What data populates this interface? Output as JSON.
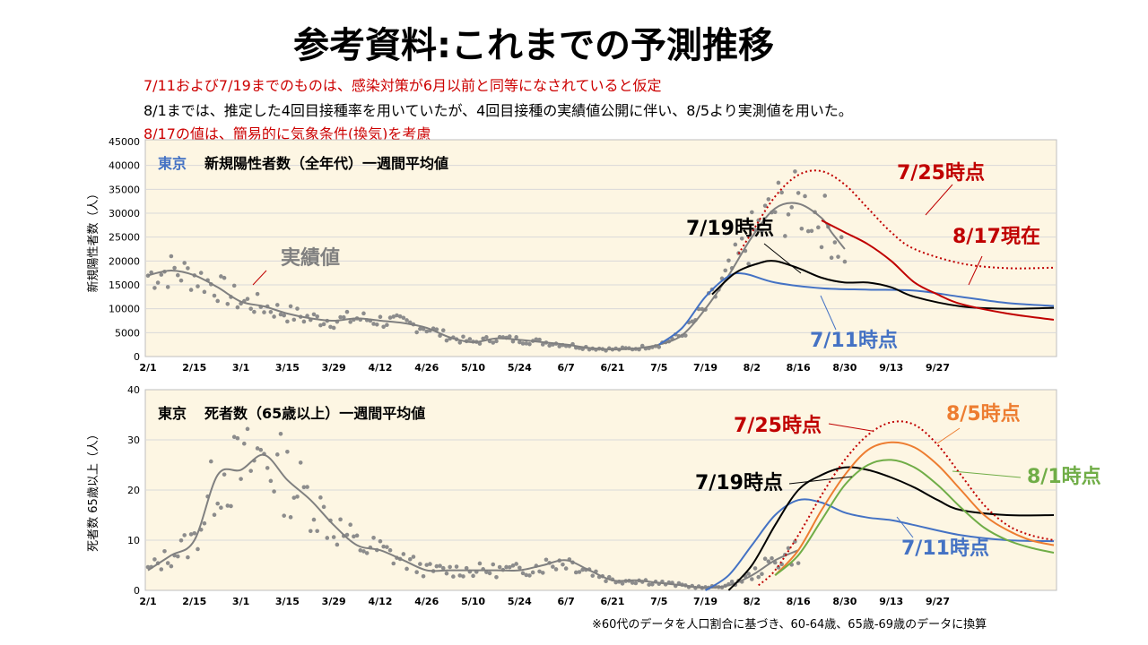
{
  "slide": {
    "title": "参考資料:これまでの予測推移",
    "notes": [
      {
        "text": "7/11および7/19までのものは、感染対策が6月以前と同等になされていると仮定",
        "color": "#cc0000"
      },
      {
        "text": "8/1までは、推定した4回目接種率を用いていたが、4回目接種の実績値公開に伴い、8/5より実測値を用いた。",
        "color": "#000000"
      },
      {
        "text": "8/17の値は、簡易的に気象条件(換気)を考慮",
        "color": "#cc0000"
      }
    ],
    "footnote": "※60代のデータを人口割合に基づき、60-64歳、65歳-69歳のデータに換算"
  },
  "chart_data": [
    {
      "type": "line",
      "title_region": "東京",
      "title": "新規陽性者数（全年代）一週間平均値",
      "ylabel": "新規陽性者数（人）",
      "ylim": [
        0,
        45000
      ],
      "yticks": [
        0,
        5000,
        10000,
        15000,
        20000,
        25000,
        30000,
        35000,
        40000,
        45000
      ],
      "xtick_labels": [
        "2/1",
        "2/15",
        "3/1",
        "3/15",
        "3/29",
        "4/12",
        "4/26",
        "5/10",
        "5/24",
        "6/7",
        "6/21",
        "7/5",
        "7/19",
        "8/2",
        "8/16",
        "8/30",
        "9/13",
        "9/27"
      ],
      "x_unit": "day index from 2/1",
      "annotations": [
        {
          "text": "実績値",
          "color": "#808080"
        },
        {
          "text": "7/19時点",
          "color": "#000000"
        },
        {
          "text": "7/25時点",
          "color": "#c00000"
        },
        {
          "text": "8/17現在",
          "color": "#c00000"
        },
        {
          "text": "7/11時点",
          "color": "#4472c4"
        }
      ],
      "series": [
        {
          "name": "実績値",
          "style": "solid",
          "color": "#808080",
          "points": [
            [
              0,
              17000
            ],
            [
              7,
              18000
            ],
            [
              14,
              17000
            ],
            [
              21,
              14500
            ],
            [
              28,
              11500
            ],
            [
              35,
              10500
            ],
            [
              42,
              9000
            ],
            [
              49,
              8000
            ],
            [
              56,
              7500
            ],
            [
              63,
              8000
            ],
            [
              70,
              7500
            ],
            [
              77,
              7000
            ],
            [
              84,
              6000
            ],
            [
              91,
              4000
            ],
            [
              98,
              3000
            ],
            [
              105,
              3800
            ],
            [
              112,
              3500
            ],
            [
              119,
              3000
            ],
            [
              126,
              2500
            ],
            [
              133,
              1800
            ],
            [
              140,
              1500
            ],
            [
              147,
              1700
            ],
            [
              154,
              2500
            ],
            [
              161,
              4500
            ],
            [
              168,
              10000
            ],
            [
              175,
              17000
            ],
            [
              182,
              25000
            ],
            [
              189,
              31000
            ],
            [
              196,
              32000
            ],
            [
              203,
              29000
            ],
            [
              206,
              26000
            ],
            [
              210,
              22500
            ]
          ]
        },
        {
          "name": "7/11時点",
          "style": "solid",
          "color": "#4472c4",
          "points": [
            [
              154,
              2500
            ],
            [
              161,
              6000
            ],
            [
              168,
              12500
            ],
            [
              175,
              16800
            ],
            [
              180,
              17300
            ],
            [
              189,
              15500
            ],
            [
              203,
              14300
            ],
            [
              217,
              14000
            ],
            [
              231,
              13800
            ],
            [
              245,
              12500
            ],
            [
              259,
              11200
            ],
            [
              273,
              10600
            ]
          ]
        },
        {
          "name": "7/19時点",
          "style": "solid",
          "color": "#000000",
          "points": [
            [
              170,
              13000
            ],
            [
              177,
              17500
            ],
            [
              184,
              19500
            ],
            [
              189,
              20000
            ],
            [
              196,
              18500
            ],
            [
              203,
              16500
            ],
            [
              210,
              15500
            ],
            [
              217,
              15500
            ],
            [
              224,
              14500
            ],
            [
              231,
              12500
            ],
            [
              245,
              10500
            ],
            [
              259,
              10000
            ],
            [
              273,
              10200
            ]
          ]
        },
        {
          "name": "7/25時点",
          "style": "dotted",
          "color": "#c00000",
          "points": [
            [
              178,
              21500
            ],
            [
              182,
              26000
            ],
            [
              189,
              33500
            ],
            [
              196,
              38000
            ],
            [
              203,
              38800
            ],
            [
              210,
              36000
            ],
            [
              217,
              31000
            ],
            [
              224,
              26000
            ],
            [
              231,
              22500
            ],
            [
              245,
              19500
            ],
            [
              259,
              18500
            ],
            [
              273,
              18600
            ]
          ]
        },
        {
          "name": "8/17現在",
          "style": "solid",
          "color": "#c00000",
          "points": [
            [
              203,
              28500
            ],
            [
              210,
              26000
            ],
            [
              217,
              23500
            ],
            [
              224,
              20000
            ],
            [
              231,
              15500
            ],
            [
              238,
              13000
            ],
            [
              245,
              11000
            ],
            [
              259,
              9000
            ],
            [
              273,
              7700
            ]
          ]
        }
      ]
    },
    {
      "type": "line",
      "title_region": "東京",
      "title": "死者数（65歳以上）一週間平均値",
      "ylabel": "死者数 65歳以上（人）",
      "ylim": [
        0,
        40
      ],
      "yticks": [
        0,
        10,
        20,
        30,
        40
      ],
      "xtick_labels": [
        "2/1",
        "2/15",
        "3/1",
        "3/15",
        "3/29",
        "4/12",
        "4/26",
        "5/10",
        "5/24",
        "6/7",
        "6/21",
        "7/5",
        "7/19",
        "8/2",
        "8/16",
        "8/30",
        "9/13",
        "9/27"
      ],
      "x_unit": "day index from 2/1",
      "annotations": [
        {
          "text": "7/25時点",
          "color": "#c00000"
        },
        {
          "text": "8/5時点",
          "color": "#ed7d31"
        },
        {
          "text": "8/1時点",
          "color": "#70ad47"
        },
        {
          "text": "7/19時点",
          "color": "#000000"
        },
        {
          "text": "7/11時点",
          "color": "#4472c4"
        }
      ],
      "series": [
        {
          "name": "実績値",
          "style": "solid",
          "color": "#808080",
          "points": [
            [
              0,
              4
            ],
            [
              7,
              7
            ],
            [
              14,
              10
            ],
            [
              21,
              23
            ],
            [
              28,
              24
            ],
            [
              35,
              27
            ],
            [
              42,
              22
            ],
            [
              49,
              18
            ],
            [
              56,
              13
            ],
            [
              63,
              9
            ],
            [
              70,
              8
            ],
            [
              77,
              6
            ],
            [
              84,
              4
            ],
            [
              91,
              4
            ],
            [
              98,
              4
            ],
            [
              105,
              4
            ],
            [
              112,
              4
            ],
            [
              119,
              5
            ],
            [
              126,
              6
            ],
            [
              133,
              4
            ],
            [
              140,
              2
            ],
            [
              147,
              2
            ],
            [
              154,
              1.5
            ],
            [
              161,
              1
            ],
            [
              168,
              0.5
            ],
            [
              175,
              1
            ],
            [
              182,
              3
            ],
            [
              189,
              6
            ],
            [
              196,
              8
            ]
          ]
        },
        {
          "name": "7/11時点",
          "style": "solid",
          "color": "#4472c4",
          "points": [
            [
              168,
              0
            ],
            [
              175,
              3
            ],
            [
              182,
              9
            ],
            [
              189,
              15
            ],
            [
              196,
              18
            ],
            [
              203,
              17.5
            ],
            [
              210,
              15.5
            ],
            [
              217,
              14.5
            ],
            [
              224,
              14
            ],
            [
              231,
              13
            ],
            [
              245,
              11
            ],
            [
              259,
              10
            ],
            [
              273,
              9.8
            ]
          ]
        },
        {
          "name": "7/19時点",
          "style": "solid",
          "color": "#000000",
          "points": [
            [
              175,
              0
            ],
            [
              182,
              5
            ],
            [
              189,
              13
            ],
            [
              196,
              20
            ],
            [
              203,
              23
            ],
            [
              210,
              24.5
            ],
            [
              217,
              24
            ],
            [
              224,
              22.5
            ],
            [
              231,
              20.5
            ],
            [
              238,
              18
            ],
            [
              245,
              16
            ],
            [
              259,
              15
            ],
            [
              273,
              15
            ]
          ]
        },
        {
          "name": "7/25時点",
          "style": "dotted",
          "color": "#c00000",
          "points": [
            [
              184,
              1
            ],
            [
              189,
              4
            ],
            [
              196,
              11
            ],
            [
              203,
              19
            ],
            [
              210,
              26
            ],
            [
              217,
              31
            ],
            [
              224,
              33.5
            ],
            [
              231,
              33
            ],
            [
              238,
              29
            ],
            [
              245,
              23
            ],
            [
              252,
              17
            ],
            [
              259,
              13
            ],
            [
              266,
              11
            ],
            [
              273,
              10
            ]
          ]
        },
        {
          "name": "8/5時点",
          "style": "solid",
          "color": "#ed7d31",
          "points": [
            [
              189,
              3
            ],
            [
              196,
              8
            ],
            [
              203,
              16
            ],
            [
              210,
              23
            ],
            [
              217,
              28
            ],
            [
              224,
              29.5
            ],
            [
              231,
              28.5
            ],
            [
              238,
              25
            ],
            [
              245,
              20
            ],
            [
              252,
              15
            ],
            [
              259,
              12
            ],
            [
              266,
              10
            ],
            [
              273,
              9
            ]
          ]
        },
        {
          "name": "8/1時点",
          "style": "solid",
          "color": "#70ad47",
          "points": [
            [
              189,
              3
            ],
            [
              196,
              7
            ],
            [
              203,
              14
            ],
            [
              210,
              21
            ],
            [
              217,
              25
            ],
            [
              224,
              26
            ],
            [
              231,
              24.5
            ],
            [
              238,
              21
            ],
            [
              245,
              16.5
            ],
            [
              252,
              12.5
            ],
            [
              259,
              10
            ],
            [
              266,
              8.5
            ],
            [
              273,
              7.5
            ]
          ]
        }
      ]
    }
  ]
}
